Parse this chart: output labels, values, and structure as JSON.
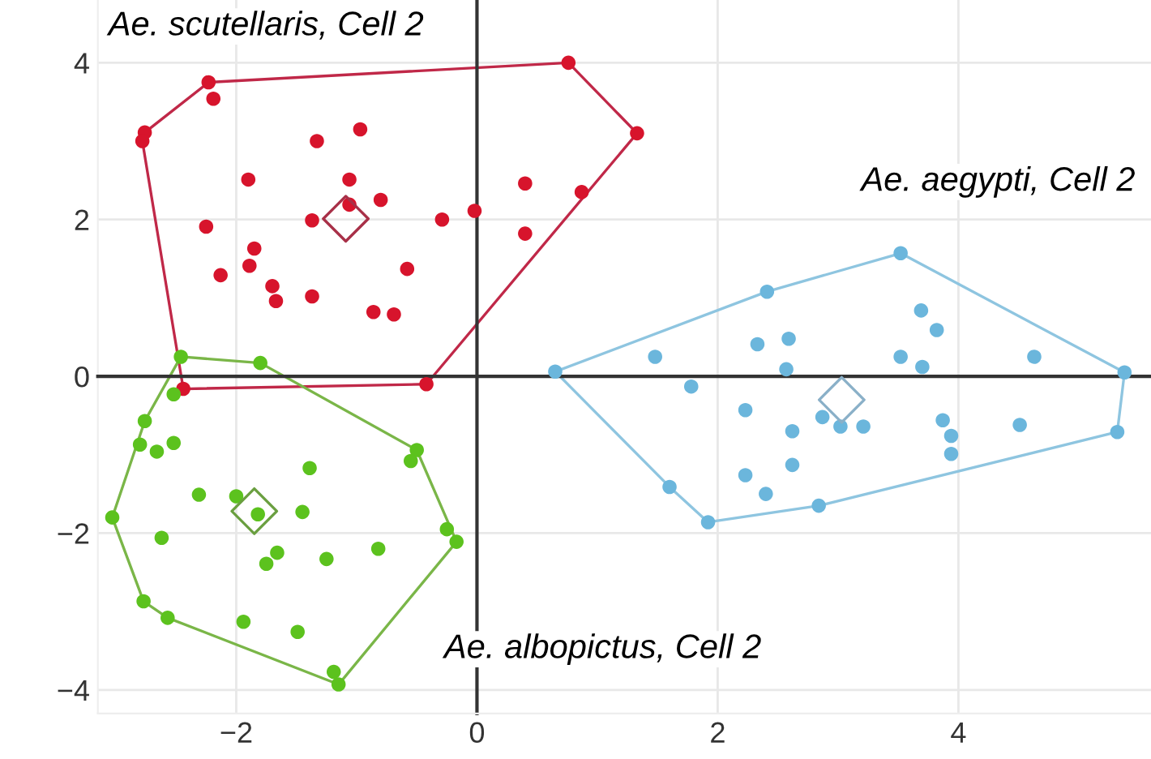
{
  "chart_data": {
    "type": "scatter",
    "xlim": [
      -3.15,
      5.6
    ],
    "ylim": [
      -4.3,
      4.8
    ],
    "xticks": [
      {
        "value": -2,
        "label": "−2"
      },
      0,
      2,
      4
    ],
    "yticks": [
      {
        "value": -4,
        "label": "−4"
      },
      {
        "value": -2,
        "label": "−2"
      },
      0,
      2,
      4
    ],
    "grid": true,
    "marker": "circle",
    "series": [
      {
        "name": "Ae. scutellaris, Cell 2",
        "color": "#d7142c",
        "x": [
          -2.23,
          -2.19,
          -2.76,
          -2.78,
          -1.33,
          -0.97,
          -1.9,
          -1.06,
          -1.06,
          -0.8,
          -2.25,
          -1.37,
          -0.29,
          -0.02,
          0.4,
          0.87,
          0.4,
          -1.85,
          -1.89,
          -2.13,
          -1.7,
          -1.67,
          -1.37,
          -0.58,
          -0.86,
          -0.69,
          0.76,
          1.33,
          -0.42,
          -2.44
        ],
        "values": [
          3.75,
          3.54,
          3.11,
          3.0,
          3.0,
          3.15,
          2.51,
          2.51,
          2.19,
          2.25,
          1.91,
          1.99,
          2.0,
          2.11,
          2.46,
          2.35,
          1.82,
          1.63,
          1.41,
          1.29,
          1.15,
          0.96,
          1.02,
          1.37,
          0.82,
          0.79,
          4.0,
          3.1,
          -0.1,
          -0.16
        ]
      },
      {
        "name": "Ae. aegypti, Cell 2",
        "color": "#6bb6dc",
        "x": [
          0.65,
          2.41,
          3.52,
          5.38,
          5.32,
          2.84,
          1.92,
          1.6,
          1.48,
          1.78,
          2.33,
          2.59,
          2.57,
          3.69,
          3.82,
          3.52,
          3.7,
          4.63,
          2.23,
          2.87,
          3.02,
          3.21,
          2.62,
          3.87,
          3.94,
          3.94,
          4.51,
          2.23,
          2.4,
          2.62
        ],
        "values": [
          0.06,
          1.08,
          1.57,
          0.05,
          -0.71,
          -1.65,
          -1.86,
          -1.41,
          0.25,
          -0.13,
          0.41,
          0.48,
          0.09,
          0.84,
          0.59,
          0.25,
          0.12,
          0.25,
          -0.43,
          -0.52,
          -0.64,
          -0.64,
          -0.7,
          -0.56,
          -0.76,
          -0.99,
          -0.62,
          -1.26,
          -1.5,
          -1.13
        ]
      },
      {
        "name": "Ae. albopictus, Cell 2",
        "color": "#5cc21e",
        "x": [
          -2.46,
          -1.8,
          -2.52,
          -2.76,
          -2.8,
          -2.66,
          -2.52,
          -0.5,
          -0.55,
          -1.39,
          -2.31,
          -2.0,
          -1.82,
          -1.45,
          -3.03,
          -2.62,
          -0.25,
          -0.17,
          -1.66,
          -1.75,
          -1.25,
          -0.82,
          -2.77,
          -2.57,
          -1.94,
          -1.49,
          -1.19,
          -1.15
        ],
        "values": [
          0.25,
          0.17,
          -0.23,
          -0.57,
          -0.87,
          -0.96,
          -0.85,
          -0.94,
          -1.08,
          -1.17,
          -1.51,
          -1.53,
          -1.76,
          -1.73,
          -1.8,
          -2.06,
          -1.95,
          -2.11,
          -2.25,
          -2.39,
          -2.33,
          -2.2,
          -2.87,
          -3.08,
          -3.13,
          -3.26,
          -3.77,
          -3.93
        ]
      },
      {
        "color": "#c02848",
        "type": "line",
        "marker": "none",
        "x": [
          -2.78,
          -2.76,
          -2.23,
          0.76,
          1.33
        ],
        "values": [
          3.0,
          3.11,
          3.75,
          4.0,
          3.1
        ]
      },
      {
        "color": "#c02848",
        "type": "line",
        "marker": "none",
        "x": [
          -2.78,
          -2.44,
          -0.42,
          1.33
        ],
        "values": [
          3.0,
          -0.16,
          -0.1,
          3.1
        ]
      },
      {
        "color": "#8ec5e0",
        "type": "line",
        "marker": "none",
        "x": [
          0.65,
          2.41,
          3.52,
          5.38
        ],
        "values": [
          0.06,
          1.08,
          1.57,
          0.05
        ]
      },
      {
        "color": "#8ec5e0",
        "type": "line",
        "marker": "none",
        "x": [
          0.65,
          1.6,
          1.92,
          2.84,
          5.32,
          5.38
        ],
        "values": [
          0.06,
          -1.41,
          -1.86,
          -1.65,
          -0.71,
          0.05
        ]
      },
      {
        "color": "#7ab648",
        "type": "line",
        "marker": "none",
        "x": [
          -3.03,
          -2.76,
          -2.46,
          -1.8,
          -0.5,
          -0.17
        ],
        "values": [
          -1.8,
          -0.57,
          0.25,
          0.17,
          -0.94,
          -2.11
        ]
      },
      {
        "color": "#7ab648",
        "type": "line",
        "marker": "none",
        "x": [
          -3.03,
          -2.77,
          -2.57,
          -1.15,
          -0.17
        ],
        "values": [
          -1.8,
          -2.87,
          -3.08,
          -3.93,
          -2.11
        ]
      },
      {
        "color": "#a83048",
        "type": "scatter",
        "marker": "diamond",
        "x": [
          -1.09
        ],
        "values": [
          2.01
        ]
      },
      {
        "color": "#8ab0c8",
        "type": "scatter",
        "marker": "diamond",
        "x": [
          3.03
        ],
        "values": [
          -0.3
        ]
      },
      {
        "color": "#6a9f40",
        "type": "scatter",
        "marker": "diamond",
        "x": [
          -1.85
        ],
        "values": [
          -1.72
        ]
      }
    ]
  }
}
